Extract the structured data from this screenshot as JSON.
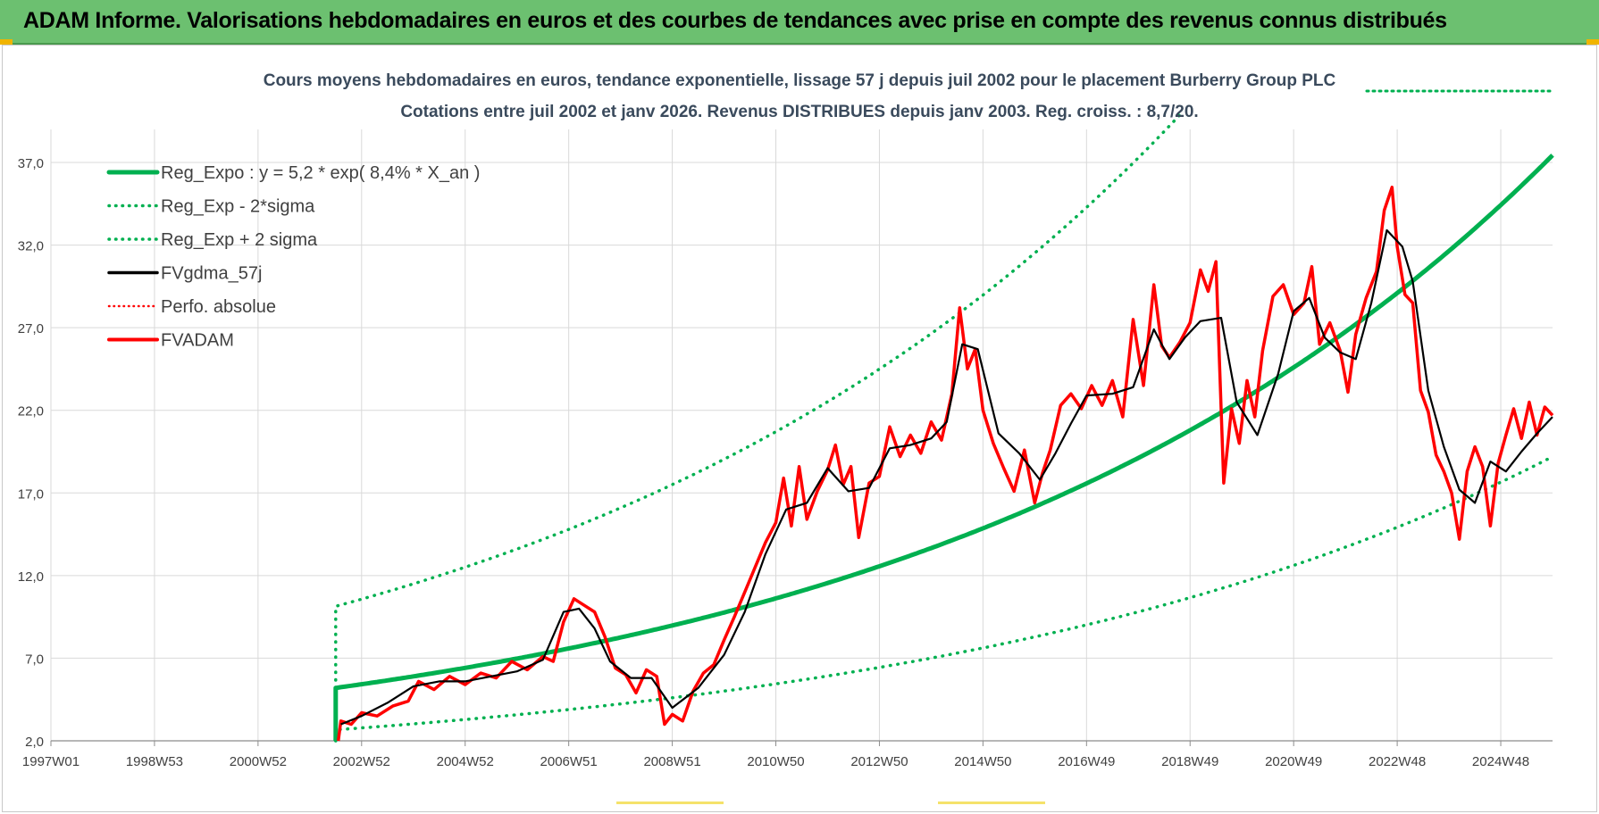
{
  "header": {
    "title": "ADAM Informe. Valorisations hebdomadaires en euros et des courbes de tendances avec prise en compte des revenus connus distribués"
  },
  "chart_data": {
    "type": "line",
    "title": "Cours moyens hebdomadaires en euros, tendance exponentielle, lissage 57 j depuis juil 2002 pour le placement Burberry Group PLC",
    "subtitle": "Cotations entre juil 2002 et janv 2026. Revenus DISTRIBUES depuis janv 2003. Reg. croiss. : 8,7/20.",
    "xlabel": "",
    "ylabel": "",
    "ylim": [
      2.0,
      39.0
    ],
    "xlim": [
      1997.0,
      2026.0
    ],
    "yticks": [
      "2,0",
      "7,0",
      "12,0",
      "17,0",
      "22,0",
      "27,0",
      "32,0",
      "37,0"
    ],
    "ytick_values": [
      2,
      7,
      12,
      17,
      22,
      27,
      32,
      37
    ],
    "xticks": [
      "1997W01",
      "1998W53",
      "2000W52",
      "2002W52",
      "2004W52",
      "2006W51",
      "2008W51",
      "2010W50",
      "2012W50",
      "2014W50",
      "2016W49",
      "2018W49",
      "2020W49",
      "2022W48",
      "2024W48"
    ],
    "xtick_values": [
      1997.0,
      1999.0,
      2001.0,
      2003.0,
      2005.0,
      2007.0,
      2009.0,
      2011.0,
      2013.0,
      2015.0,
      2017.0,
      2019.0,
      2021.0,
      2023.0,
      2025.0
    ],
    "grid": true,
    "legend_position": "top-left",
    "colors": {
      "green": "#00b050",
      "black": "#000000",
      "red": "#ff0000"
    },
    "regression": {
      "start_year": 2002.5,
      "end_year": 2026.0,
      "a": 5.2,
      "rate": 0.084,
      "sigma_factor": 1.95
    },
    "series": [
      {
        "name": "Reg_Expo : y = 5,2 * exp( 8,4% *  X_an )",
        "style": "solid-thick",
        "color": "#00b050"
      },
      {
        "name": "Reg_Exp - 2*sigma",
        "style": "dotted",
        "color": "#00b050"
      },
      {
        "name": "Reg_Exp + 2 sigma",
        "style": "dotted",
        "color": "#00b050"
      },
      {
        "name": "FVgdma_57j",
        "style": "solid",
        "color": "#000000",
        "x": [
          2002.6,
          2003.0,
          2003.5,
          2004.0,
          2004.5,
          2005.0,
          2005.5,
          2006.0,
          2006.5,
          2006.9,
          2007.2,
          2007.5,
          2007.8,
          2008.2,
          2008.6,
          2009.0,
          2009.5,
          2010.0,
          2010.4,
          2010.8,
          2011.2,
          2011.6,
          2012.0,
          2012.4,
          2012.8,
          2013.2,
          2013.6,
          2014.0,
          2014.3,
          2014.6,
          2014.9,
          2015.3,
          2015.7,
          2016.1,
          2016.4,
          2016.7,
          2017.0,
          2017.5,
          2017.9,
          2018.3,
          2018.6,
          2018.9,
          2019.2,
          2019.6,
          2019.9,
          2020.3,
          2020.7,
          2021.0,
          2021.3,
          2021.6,
          2021.9,
          2022.2,
          2022.5,
          2022.8,
          2023.1,
          2023.3,
          2023.6,
          2023.9,
          2024.2,
          2024.5,
          2024.8,
          2025.1,
          2025.4,
          2025.7,
          2026.0
        ],
        "y": [
          3.0,
          3.5,
          4.3,
          5.3,
          5.6,
          5.6,
          5.9,
          6.2,
          6.9,
          9.8,
          10.0,
          8.8,
          6.8,
          5.8,
          5.8,
          4.0,
          5.2,
          7.2,
          9.8,
          13.3,
          16.0,
          16.4,
          18.5,
          17.1,
          17.3,
          19.7,
          19.9,
          20.3,
          21.3,
          26.0,
          25.7,
          20.6,
          19.4,
          17.8,
          19.4,
          21.2,
          22.9,
          23.0,
          23.4,
          26.9,
          25.1,
          26.4,
          27.4,
          27.6,
          22.5,
          20.5,
          24.2,
          28.0,
          28.8,
          26.4,
          25.5,
          25.1,
          28.5,
          32.9,
          31.9,
          29.8,
          23.2,
          19.8,
          17.2,
          16.4,
          18.9,
          18.3,
          19.5,
          20.6,
          21.6
        ]
      },
      {
        "name": "Perfo. absolue",
        "style": "dotted",
        "color": "#ff0000"
      },
      {
        "name": "FVADAM",
        "style": "solid-thick",
        "color": "#ff0000",
        "x": [
          2002.55,
          2002.6,
          2002.8,
          2003.0,
          2003.3,
          2003.6,
          2003.9,
          2004.1,
          2004.4,
          2004.7,
          2005.0,
          2005.3,
          2005.6,
          2005.9,
          2006.2,
          2006.5,
          2006.7,
          2006.9,
          2007.1,
          2007.3,
          2007.5,
          2007.7,
          2007.9,
          2008.1,
          2008.3,
          2008.5,
          2008.7,
          2008.85,
          2009.0,
          2009.2,
          2009.4,
          2009.6,
          2009.8,
          2010.0,
          2010.2,
          2010.4,
          2010.6,
          2010.8,
          2011.0,
          2011.15,
          2011.3,
          2011.45,
          2011.6,
          2011.8,
          2012.0,
          2012.15,
          2012.3,
          2012.45,
          2012.6,
          2012.8,
          2013.0,
          2013.2,
          2013.4,
          2013.6,
          2013.8,
          2014.0,
          2014.2,
          2014.4,
          2014.55,
          2014.7,
          2014.85,
          2015.0,
          2015.2,
          2015.4,
          2015.6,
          2015.8,
          2016.0,
          2016.15,
          2016.3,
          2016.5,
          2016.7,
          2016.9,
          2017.1,
          2017.3,
          2017.5,
          2017.7,
          2017.9,
          2018.1,
          2018.3,
          2018.45,
          2018.6,
          2018.8,
          2019.0,
          2019.2,
          2019.35,
          2019.5,
          2019.65,
          2019.8,
          2019.95,
          2020.1,
          2020.25,
          2020.4,
          2020.6,
          2020.8,
          2021.0,
          2021.2,
          2021.35,
          2021.5,
          2021.7,
          2021.9,
          2022.05,
          2022.2,
          2022.4,
          2022.6,
          2022.75,
          2022.9,
          2023.0,
          2023.15,
          2023.3,
          2023.45,
          2023.6,
          2023.75,
          2023.9,
          2024.05,
          2024.2,
          2024.35,
          2024.5,
          2024.65,
          2024.8,
          2024.95,
          2025.1,
          2025.25,
          2025.4,
          2025.55,
          2025.7,
          2025.85,
          2026.0
        ],
        "y": [
          2.0,
          3.2,
          3.0,
          3.7,
          3.5,
          4.1,
          4.4,
          5.6,
          5.1,
          5.9,
          5.4,
          6.1,
          5.8,
          6.8,
          6.3,
          7.1,
          6.8,
          9.2,
          10.6,
          10.2,
          9.8,
          8.3,
          6.4,
          6.0,
          4.9,
          6.3,
          5.9,
          3.0,
          3.6,
          3.2,
          5.0,
          6.1,
          6.6,
          8.1,
          9.5,
          11.0,
          12.5,
          14.0,
          15.2,
          17.9,
          15.0,
          18.6,
          15.4,
          17.1,
          18.4,
          19.9,
          17.5,
          18.6,
          14.3,
          17.6,
          18.0,
          21.0,
          19.2,
          20.5,
          19.4,
          21.3,
          20.2,
          23.0,
          28.2,
          24.5,
          25.7,
          22.0,
          20.0,
          18.5,
          17.1,
          19.6,
          16.4,
          18.2,
          19.6,
          22.3,
          23.0,
          22.1,
          23.5,
          22.3,
          23.8,
          21.6,
          27.5,
          23.5,
          29.6,
          25.9,
          25.2,
          26.1,
          27.3,
          30.5,
          29.2,
          31.0,
          17.6,
          22.1,
          20.0,
          23.8,
          21.6,
          25.6,
          28.9,
          29.6,
          27.8,
          28.5,
          30.7,
          26.0,
          27.3,
          25.6,
          23.1,
          26.6,
          28.8,
          30.4,
          34.1,
          35.5,
          31.9,
          29.0,
          28.5,
          23.2,
          21.9,
          19.3,
          18.3,
          17.0,
          14.2,
          18.3,
          19.8,
          18.6,
          15.0,
          18.8,
          20.5,
          22.1,
          20.3,
          22.5,
          20.5,
          22.2,
          21.7
        ]
      }
    ]
  }
}
